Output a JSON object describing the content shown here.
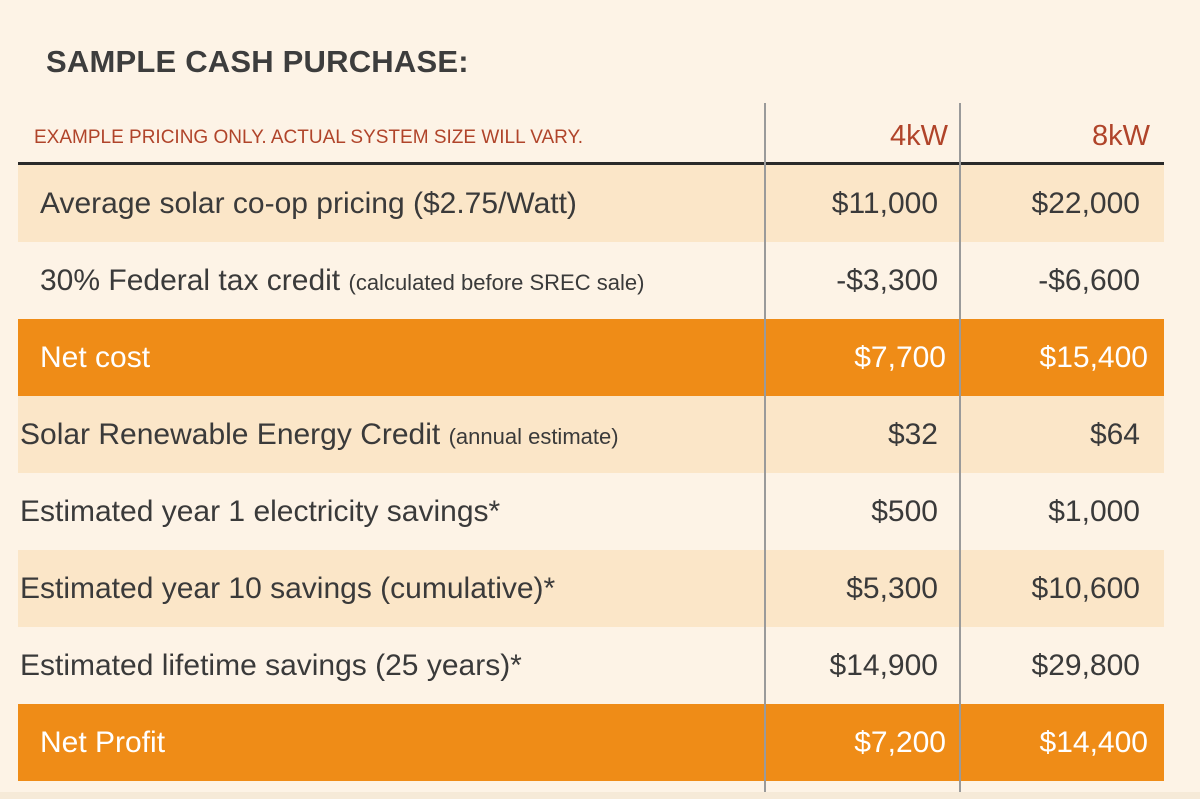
{
  "title": "SAMPLE CASH PURCHASE:",
  "note": "EXAMPLE PRICING ONLY. ACTUAL SYSTEM SIZE WILL VARY.",
  "columns": [
    "4kW",
    "8kW"
  ],
  "rows": [
    {
      "label": "Average solar co-op pricing ($2.75/Watt)",
      "note": "",
      "v1": "$11,000",
      "v2": "$22,000"
    },
    {
      "label": "30% Federal tax credit",
      "note": "(calculated before SREC sale)",
      "v1": "-$3,300",
      "v2": "-$6,600"
    },
    {
      "label": "Net cost",
      "note": "",
      "v1": "$7,700",
      "v2": "$15,400"
    },
    {
      "label": "Solar Renewable Energy Credit",
      "note": "(annual estimate)",
      "v1": "$32",
      "v2": "$64"
    },
    {
      "label": "Estimated year 1 electricity savings*",
      "note": "",
      "v1": "$500",
      "v2": "$1,000"
    },
    {
      "label": "Estimated year 10 savings (cumulative)*",
      "note": "",
      "v1": "$5,300",
      "v2": "$10,600"
    },
    {
      "label": "Estimated lifetime savings (25 years)*",
      "note": "",
      "v1": "$14,900",
      "v2": "$29,800"
    },
    {
      "label": "Net Profit",
      "note": "",
      "v1": "$7,200",
      "v2": "$14,400"
    }
  ],
  "colors": {
    "background": "#fdf3e6",
    "shaded_row": "#fbe6c8",
    "highlight_row": "#ef8c17",
    "accent_text": "#b0442a"
  }
}
